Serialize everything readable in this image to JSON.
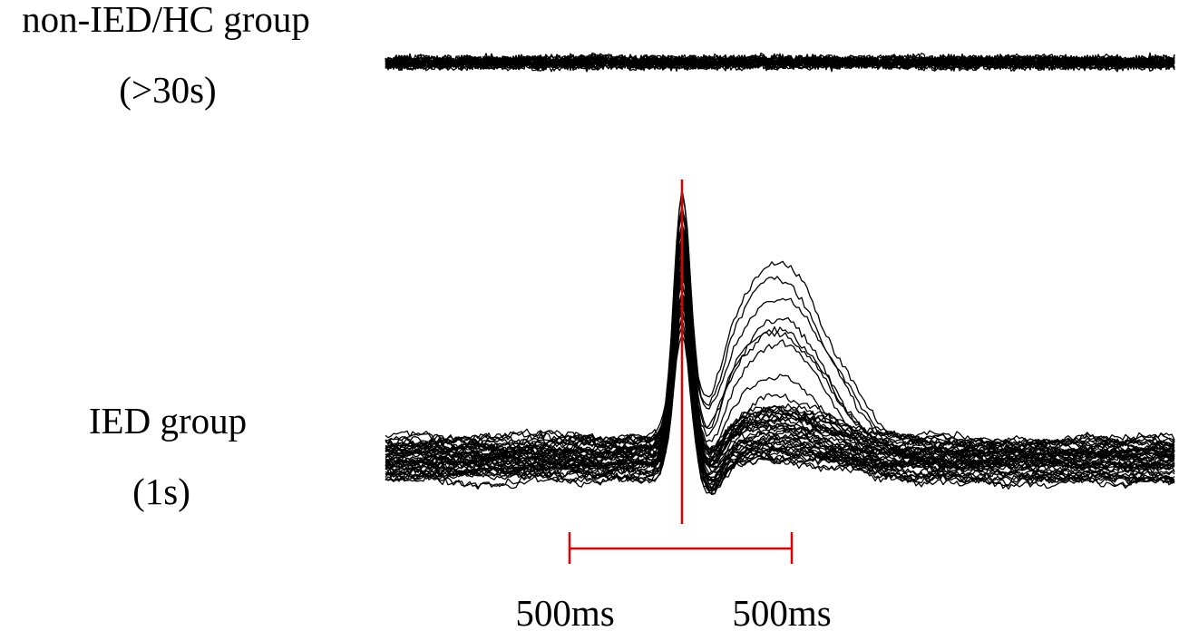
{
  "labels": {
    "group_1": "non-IED/HC group",
    "duration_1": "(>30s)",
    "group_2": "IED group",
    "duration_2": "(1s)"
  },
  "scale": {
    "before": "500ms",
    "after": "500ms"
  }
}
